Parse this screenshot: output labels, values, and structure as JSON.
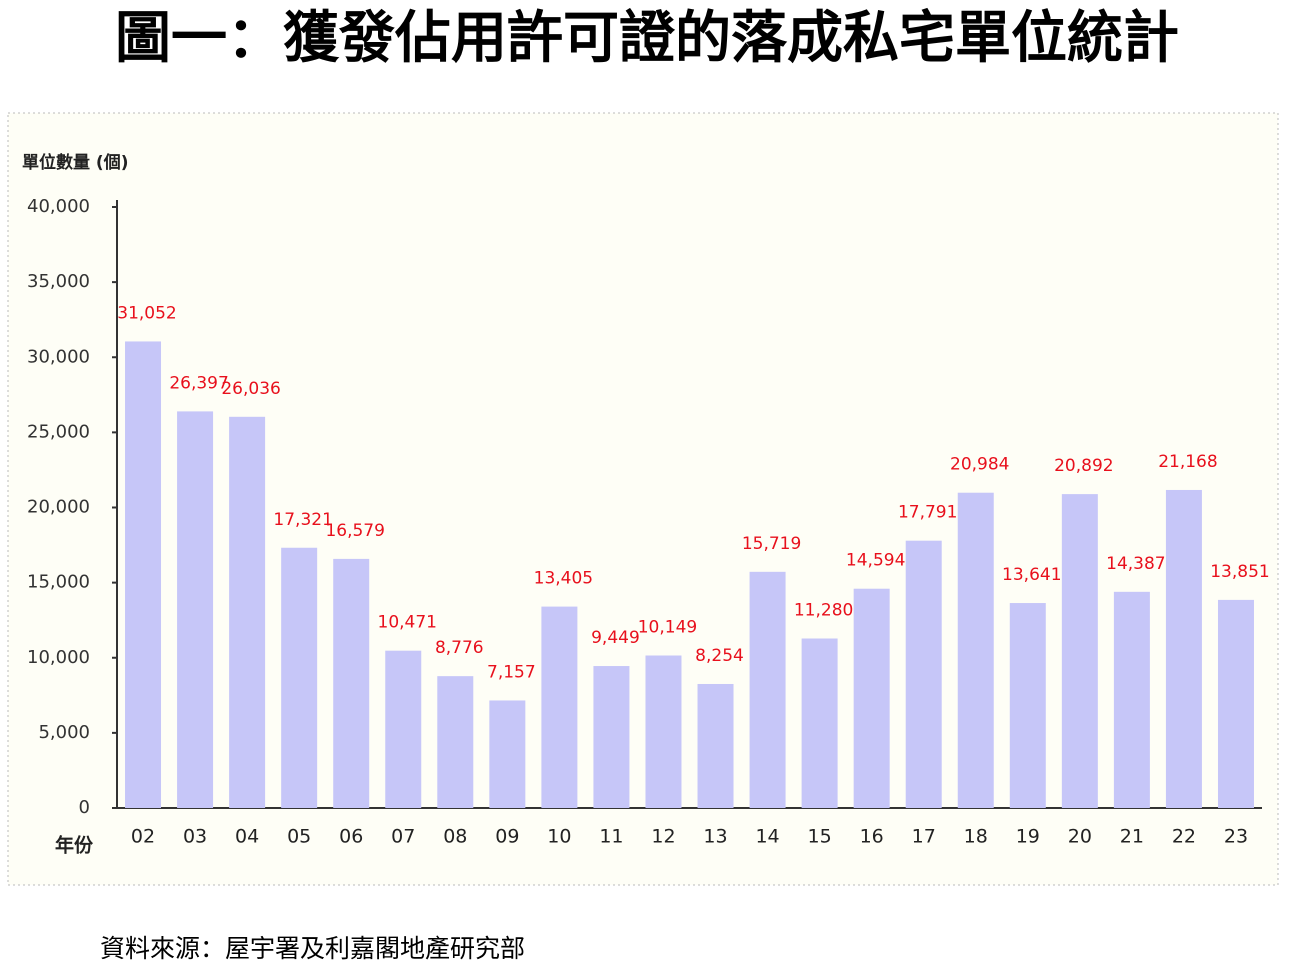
{
  "title": "圖一：獲發佔用許可證的落成私宅單位統計",
  "source": "資料來源：屋宇署及利嘉閣地產研究部",
  "chart_data": {
    "type": "bar",
    "y_label": "單位數量 (個)",
    "x_label": "年份",
    "categories": [
      "02",
      "03",
      "04",
      "05",
      "06",
      "07",
      "08",
      "09",
      "10",
      "11",
      "12",
      "13",
      "14",
      "15",
      "16",
      "17",
      "18",
      "19",
      "20",
      "21",
      "22",
      "23"
    ],
    "values": [
      31052,
      26397,
      26036,
      17321,
      16579,
      10471,
      8776,
      7157,
      13405,
      9449,
      10149,
      8254,
      15719,
      11280,
      14594,
      17791,
      20984,
      13641,
      20892,
      14387,
      21168,
      13851
    ],
    "value_labels": [
      "31,052",
      "26,397",
      "26,036",
      "17,321",
      "16,579",
      "10,471",
      "8,776",
      "7,157",
      "13,405",
      "9,449",
      "10,149",
      "8,254",
      "15,719",
      "11,280",
      "14,594",
      "17,791",
      "20,984",
      "13,641",
      "20,892",
      "14,387",
      "21,168",
      "13,851"
    ],
    "color": "#c6c6f8",
    "label_color": "#e8101c",
    "ylim": [
      0,
      40000
    ],
    "yticks": [
      0,
      {
        "value": 5000,
        "label": "5,000"
      },
      {
        "value": 10000,
        "label": "10,000"
      },
      {
        "value": 15000,
        "label": "15,000"
      },
      {
        "value": 20000,
        "label": "20,000"
      },
      {
        "value": 25000,
        "label": "25,000"
      },
      {
        "value": 30000,
        "label": "30,000"
      },
      {
        "value": 35000,
        "label": "35,000"
      },
      {
        "value": 40000,
        "label": "40,000"
      }
    ],
    "grid": false
  }
}
